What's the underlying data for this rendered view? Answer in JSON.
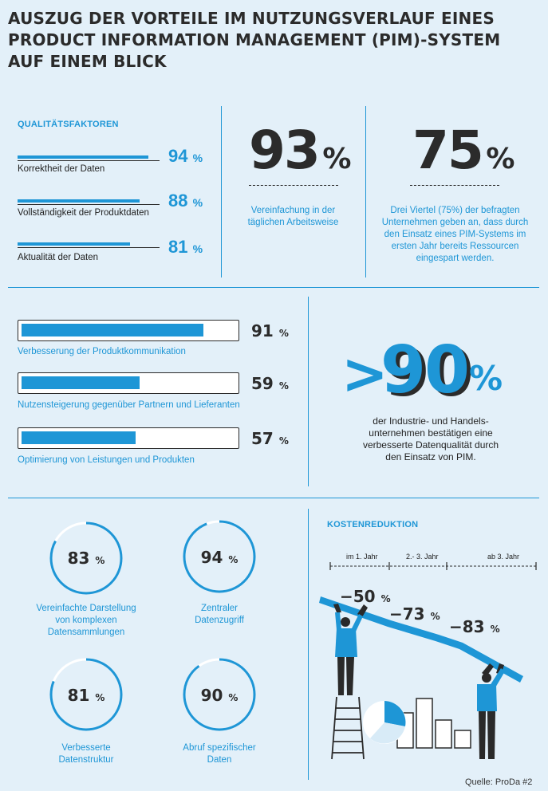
{
  "title": {
    "line1": "AUSZUG DER VORTEILE IM NUTZUNGSVERLAUF EINES",
    "line2": "PRODUCT INFORMATION MANAGEMENT (PIM)-SYSTEM",
    "line3": "AUF EINEM BLICK"
  },
  "colors": {
    "accent": "#1e96d6",
    "dark": "#2b2b2b",
    "background": "#e3f0f9"
  },
  "quality": {
    "label": "QUALITÄTSFAKTOREN",
    "items": [
      {
        "value": 94,
        "num": "94",
        "unit": "%",
        "label": "Korrektheit der Daten"
      },
      {
        "value": 88,
        "num": "88",
        "unit": "%",
        "label": "Vollständigkeit der Produktdaten"
      },
      {
        "value": 81,
        "num": "81",
        "unit": "%",
        "label": "Aktualität der Daten"
      }
    ]
  },
  "stat93": {
    "num": "93",
    "unit": "%",
    "text1": "Vereinfachung in der",
    "text2": "täglichen Arbeitsweise"
  },
  "stat75": {
    "num": "75",
    "unit": "%",
    "lines": [
      "Drei Viertel (75%) der befragten",
      "Unternehmen geben an, dass durch",
      "den Einsatz eines PIM-Systems im",
      "ersten Jahr bereits Ressourcen",
      "eingespart werden."
    ]
  },
  "progress": {
    "items": [
      {
        "value": 91,
        "num": "91",
        "unit": "%",
        "label": "Verbesserung der Produktkommunikation"
      },
      {
        "value": 59,
        "num": "59",
        "unit": "%",
        "label": "Nutzensteigerung gegenüber Partnern und Lieferanten"
      },
      {
        "value": 57,
        "num": "57",
        "unit": "%",
        "label": "Optimierung von Leistungen und Produkten"
      }
    ]
  },
  "stat90": {
    "prefix": ">",
    "num": "90",
    "unit": "%",
    "lines": [
      "der Industrie- und Handels-",
      "unternehmen bestätigen eine",
      "verbesserte Datenqualität durch",
      "den Einsatz von PIM."
    ]
  },
  "rings": [
    {
      "value": 83,
      "num": "83",
      "unit": "%",
      "lines": [
        "Vereinfachte Darstellung",
        "von komplexen",
        "Datensammlungen"
      ]
    },
    {
      "value": 94,
      "num": "94",
      "unit": "%",
      "lines": [
        "Zentraler",
        "Datenzugriff"
      ]
    },
    {
      "value": 81,
      "num": "81",
      "unit": "%",
      "lines": [
        "Verbesserte",
        "Datenstruktur"
      ]
    },
    {
      "value": 90,
      "num": "90",
      "unit": "%",
      "lines": [
        "Abruf spezifischer",
        "Daten"
      ]
    }
  ],
  "cost": {
    "label": "KOSTENREDUKTION",
    "periods": [
      "im 1. Jahr",
      "2.- 3. Jahr",
      "ab 3. Jahr"
    ],
    "values": [
      {
        "num": "−50",
        "unit": "%"
      },
      {
        "num": "−73",
        "unit": "%"
      },
      {
        "num": "−83",
        "unit": "%"
      }
    ]
  },
  "chart_data": [
    {
      "type": "bar",
      "title": "QUALITÄTSFAKTOREN",
      "categories": [
        "Korrektheit der Daten",
        "Vollständigkeit der Produktdaten",
        "Aktualität der Daten"
      ],
      "values": [
        94,
        88,
        81
      ],
      "unit": "%"
    },
    {
      "type": "bar",
      "categories": [
        "Verbesserung der Produktkommunikation",
        "Nutzensteigerung gegenüber Partnern und Lieferanten",
        "Optimierung von Leistungen und Produkten"
      ],
      "values": [
        91,
        59,
        57
      ],
      "ylim": [
        0,
        100
      ],
      "unit": "%"
    },
    {
      "type": "pie",
      "categories": [
        "Vereinfachte Darstellung von komplexen Datensammlungen",
        "Zentraler Datenzugriff",
        "Verbesserte Datenstruktur",
        "Abruf spezifischer Daten"
      ],
      "values": [
        83,
        94,
        81,
        90
      ],
      "unit": "%"
    },
    {
      "type": "line",
      "title": "KOSTENREDUKTION",
      "categories": [
        "im 1. Jahr",
        "2.- 3. Jahr",
        "ab 3. Jahr"
      ],
      "values": [
        -50,
        -73,
        -83
      ],
      "unit": "%"
    }
  ]
}
